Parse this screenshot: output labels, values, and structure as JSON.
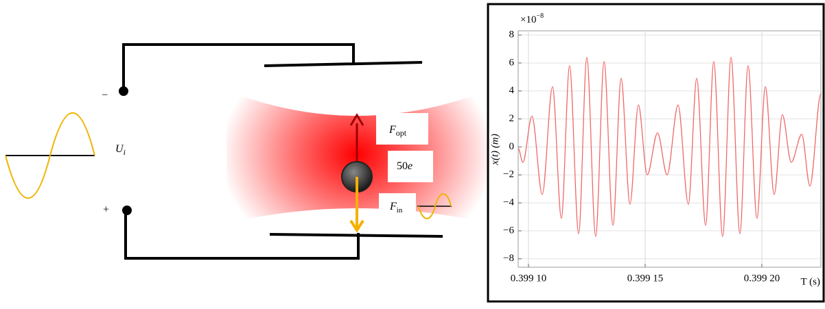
{
  "diagram": {
    "minus": "−",
    "plus": "+",
    "voltage": {
      "symbol": "U",
      "subscript": "i"
    },
    "optical_force": {
      "symbol": "F",
      "subscript": "opt"
    },
    "charge": {
      "number": "50",
      "symbol": "e"
    },
    "input_force": {
      "symbol": "F",
      "subscript": "in"
    }
  },
  "chart_data": {
    "type": "line",
    "multiplier": {
      "base": "×10",
      "exponent": "−8"
    },
    "y_label": "x(t) (m)",
    "x_label": "T (s)",
    "x": [
      0.3990956,
      0.3990976,
      0.3991015,
      0.3991059,
      0.3991103,
      0.3991141,
      0.3991176,
      0.3991215,
      0.399125,
      0.3991288,
      0.3991324,
      0.3991362,
      0.3991397,
      0.3991435,
      0.3991471,
      0.3991509,
      0.3991553,
      0.3991594,
      0.3991641,
      0.3991685,
      0.3991721,
      0.3991759,
      0.3991794,
      0.3991832,
      0.3991868,
      0.3991906,
      0.3991941,
      0.3991979,
      0.3992015,
      0.3992053,
      0.3992088,
      0.3992126,
      0.3992171,
      0.3992206,
      0.3992253
    ],
    "series": [
      {
        "color": "#f06868",
        "values": [
          -0.1,
          -1.1,
          2.2,
          -3.4,
          4.3,
          -5.1,
          5.8,
          -6.2,
          6.4,
          -6.4,
          6.1,
          -5.6,
          4.9,
          -4.1,
          3.0,
          -2.0,
          1.0,
          -2.0,
          3.0,
          -4.1,
          4.9,
          -5.6,
          6.1,
          -6.4,
          6.4,
          -6.2,
          5.8,
          -5.1,
          4.3,
          -3.4,
          2.3,
          -1.1,
          0.9,
          -2.8,
          3.8
        ]
      }
    ],
    "xlim": [
      0.3990956,
      0.3992253
    ],
    "ylim": [
      -8.6,
      8.3
    ],
    "xticks": [
      {
        "value": 0.3991,
        "label": "0.399 10"
      },
      {
        "value": 0.39915,
        "label": "0.399 15"
      },
      {
        "value": 0.3992,
        "label": "0.399 20"
      }
    ],
    "yticks": [
      {
        "value": -8,
        "label": "−8"
      },
      {
        "value": -6,
        "label": "−6"
      },
      {
        "value": -4,
        "label": "−4"
      },
      {
        "value": -2,
        "label": "−2"
      },
      0,
      2,
      4,
      6,
      8
    ],
    "grid": true
  }
}
